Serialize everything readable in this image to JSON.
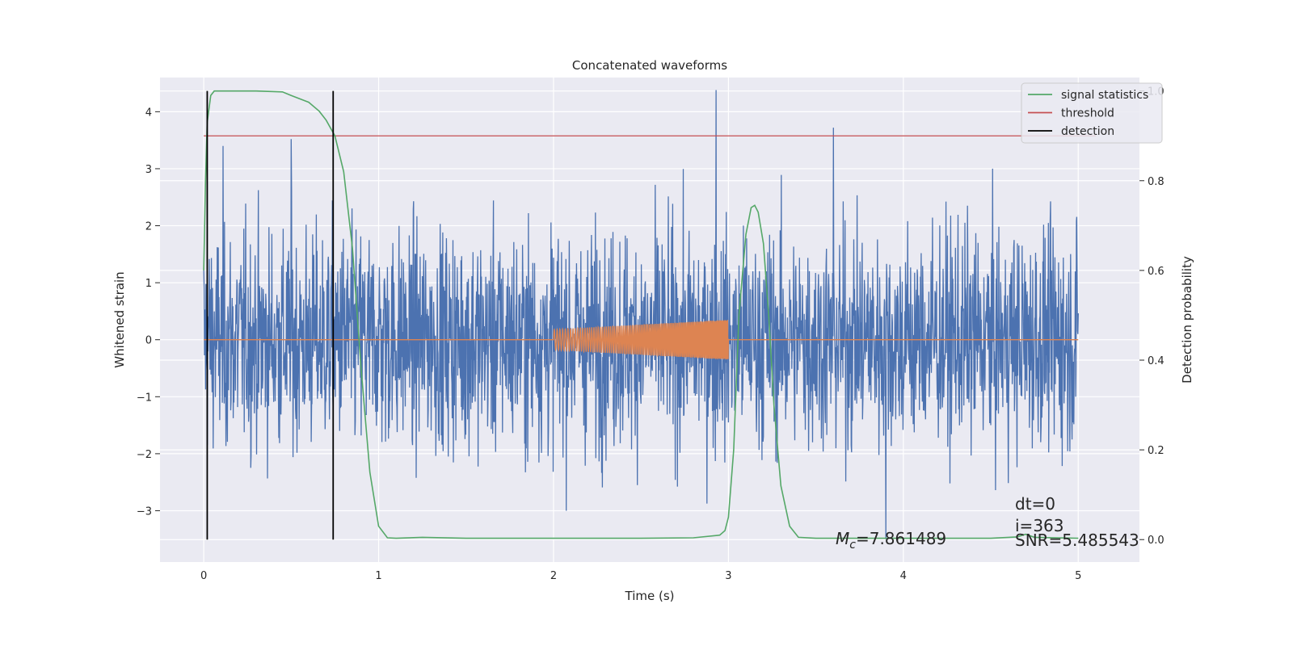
{
  "chart_data": {
    "type": "line",
    "title": "Concatenated waveforms",
    "xlabel": "Time (s)",
    "ylabel": "Whitened strain",
    "ylabel_right": "Detection probability",
    "xlim": [
      -0.25,
      5.35
    ],
    "ylim": [
      -3.9,
      4.6
    ],
    "ylim_right": [
      -0.05,
      1.03
    ],
    "x_ticks": [
      "0",
      "1",
      "2",
      "3",
      "4",
      "5"
    ],
    "y_ticks": [
      "4",
      "3",
      "2",
      "1",
      "0",
      "−1",
      "−2",
      "−3"
    ],
    "y_ticks_right": [
      "1.0",
      "0.8",
      "0.6",
      "0.4",
      "0.2",
      "0.0"
    ],
    "grid": true,
    "legend_position": "top-right",
    "legend": [
      "signal statistics",
      "threshold",
      "detection"
    ],
    "annotations": {
      "mc": "M_c=7.861489",
      "dt": "dt=0",
      "i": "i=363",
      "snr": "SNR=5.485543"
    },
    "colors": {
      "noise": "#4c72b0",
      "waveform": "#dd8452",
      "statistic": "#55a868",
      "threshold": "#c44e52",
      "detection": "#000000",
      "background": "#eaeaf2",
      "grid": "#ffffff"
    },
    "series": [
      {
        "name": "",
        "role": "whitened noise",
        "x_range": [
          0,
          5
        ],
        "y_range_approx": [
          -3.5,
          4.4
        ],
        "notable_peaks": [
          [
            0.11,
            3.4
          ],
          [
            0.5,
            3.52
          ],
          [
            2.93,
            4.38
          ],
          [
            3.6,
            3.72
          ],
          [
            3.9,
            -3.5
          ]
        ]
      },
      {
        "name": "",
        "role": "injected chirp",
        "x": [
          2.0,
          3.0
        ],
        "amplitude_start": 0.18,
        "amplitude_end": 0.35,
        "value_outside": 0
      },
      {
        "name": "signal statistics",
        "axis": "right",
        "x": [
          0,
          0.01,
          0.02,
          0.04,
          0.06,
          0.1,
          0.2,
          0.3,
          0.45,
          0.5,
          0.6,
          0.66,
          0.7,
          0.75,
          0.8,
          0.85,
          0.9,
          0.95,
          1.0,
          1.05,
          1.1,
          1.25,
          1.5,
          2.0,
          2.5,
          2.8,
          2.95,
          2.98,
          3.0,
          3.03,
          3.06,
          3.1,
          3.13,
          3.15,
          3.17,
          3.2,
          3.23,
          3.26,
          3.3,
          3.35,
          3.4,
          3.5,
          4.0,
          4.5,
          4.65,
          4.7,
          4.75,
          5.0
        ],
        "values": [
          0.6,
          0.8,
          0.93,
          0.99,
          1.0,
          1.0,
          1.0,
          1.0,
          0.998,
          0.99,
          0.975,
          0.955,
          0.935,
          0.9,
          0.82,
          0.65,
          0.38,
          0.15,
          0.03,
          0.004,
          0.003,
          0.005,
          0.003,
          0.003,
          0.003,
          0.004,
          0.01,
          0.02,
          0.05,
          0.2,
          0.5,
          0.68,
          0.74,
          0.745,
          0.73,
          0.66,
          0.5,
          0.3,
          0.12,
          0.03,
          0.005,
          0.003,
          0.003,
          0.003,
          0.006,
          0.012,
          0.005,
          0.003
        ]
      },
      {
        "name": "threshold",
        "axis": "right",
        "x": [
          0,
          5.1
        ],
        "values": [
          0.9,
          0.9
        ]
      },
      {
        "name": "detection",
        "axis": "right",
        "vlines_x": [
          0.02,
          0.74
        ],
        "y_range": [
          0.0,
          1.0
        ]
      }
    ]
  }
}
